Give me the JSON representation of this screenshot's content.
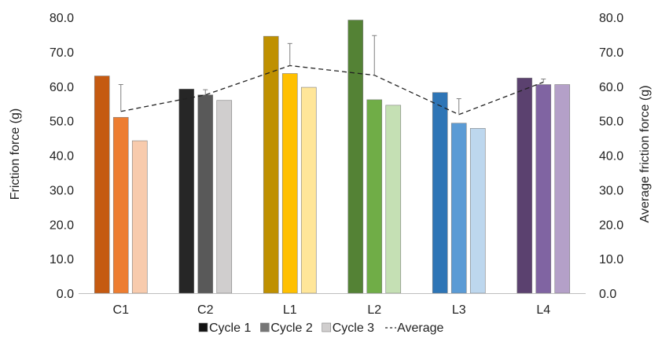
{
  "chart_data": {
    "type": "bar",
    "categories": [
      "C1",
      "C2",
      "L1",
      "L2",
      "L3",
      "L4"
    ],
    "series": [
      {
        "name": "Cycle 1",
        "values": [
          63.0,
          59.2,
          74.5,
          79.2,
          58.2,
          62.4
        ]
      },
      {
        "name": "Cycle 2",
        "values": [
          51.0,
          57.5,
          63.7,
          56.1,
          49.3,
          60.5
        ]
      },
      {
        "name": "Cycle 3",
        "values": [
          44.2,
          55.9,
          59.7,
          54.5,
          47.8,
          60.5
        ]
      }
    ],
    "average": {
      "name": "Average",
      "values": [
        52.7,
        57.5,
        66.0,
        63.2,
        51.8,
        61.2
      ],
      "error_plus": [
        7.8,
        1.5,
        6.4,
        11.5,
        4.6,
        0.9
      ]
    },
    "colors": [
      [
        "#C55A11",
        "#ED7D31",
        "#F8CBAD"
      ],
      [
        "#262626",
        "#595959",
        "#D0CECE"
      ],
      [
        "#BF9000",
        "#FFC000",
        "#FFE699"
      ],
      [
        "#548235",
        "#70AD47",
        "#C5E0B4"
      ],
      [
        "#2E75B6",
        "#5B9BD5",
        "#BDD7EE"
      ],
      [
        "#5B416F",
        "#8064A2",
        "#B4A0C8"
      ]
    ],
    "legend_colors": [
      "#111111",
      "#767676",
      "#D0CECE"
    ],
    "ylabel": "Friction force (g)",
    "y2label": "Average friction force (g)",
    "ylim": [
      0,
      80
    ],
    "yticks": [
      "0.0",
      "10.0",
      "20.0",
      "30.0",
      "40.0",
      "50.0",
      "60.0",
      "70.0",
      "80.0"
    ],
    "grid": false,
    "legend_position": "bottom"
  }
}
